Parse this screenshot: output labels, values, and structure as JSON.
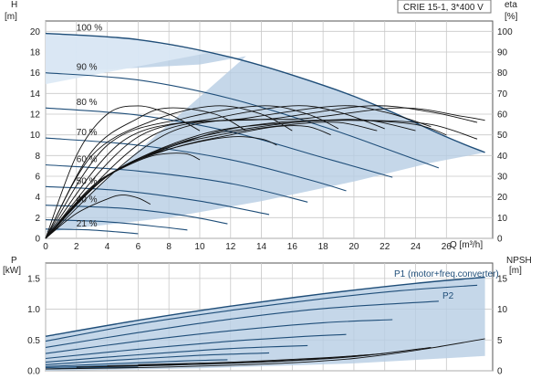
{
  "colors": {
    "curve": "#1f4e79",
    "area_dark": "#b7cde4",
    "area_light": "#dce9f5",
    "grid": "#c8c8c8",
    "efficiency": "#111111",
    "axis": "#555555"
  },
  "chart_data": [
    {
      "type": "line",
      "title": "CRIE 15-1, 3*400 V",
      "xlabel": "Q [m³/h]",
      "ylabel_left": "H",
      "ylabel_left_unit": "[m]",
      "ylabel_right": "eta",
      "ylabel_right_unit": "[%]",
      "xlim": [
        0,
        29
      ],
      "ylim_left": [
        0,
        21
      ],
      "ylim_right": [
        0,
        105
      ],
      "x_ticks": [
        0,
        2,
        4,
        6,
        8,
        10,
        12,
        14,
        16,
        18,
        20,
        22,
        24,
        26
      ],
      "y_ticks_left": [
        0,
        2,
        4,
        6,
        8,
        10,
        12,
        14,
        16,
        18,
        20
      ],
      "y_ticks_right": [
        0,
        10,
        20,
        30,
        40,
        50,
        60,
        70,
        80,
        90,
        100
      ],
      "grid": true,
      "head_curves": [
        {
          "label": "100 %",
          "values": [
            [
              0,
              19.8
            ],
            [
              6,
              19.2
            ],
            [
              12,
              17.5
            ],
            [
              18,
              14.8
            ],
            [
              22,
              12.5
            ],
            [
              26,
              9.8
            ],
            [
              28.5,
              8.3
            ]
          ]
        },
        {
          "label": "90 %",
          "values": [
            [
              0,
              16.0
            ],
            [
              6,
              15.3
            ],
            [
              12,
              13.5
            ],
            [
              18,
              10.8
            ],
            [
              22,
              8.7
            ],
            [
              25.5,
              6.8
            ]
          ]
        },
        {
          "label": "80 %",
          "values": [
            [
              0,
              12.6
            ],
            [
              6,
              11.9
            ],
            [
              12,
              10.3
            ],
            [
              18,
              7.8
            ],
            [
              22.5,
              5.9
            ]
          ]
        },
        {
          "label": "70 %",
          "values": [
            [
              0,
              9.7
            ],
            [
              6,
              9.0
            ],
            [
              12,
              7.6
            ],
            [
              17,
              5.7
            ],
            [
              19.5,
              4.6
            ]
          ]
        },
        {
          "label": "60 %",
          "values": [
            [
              0,
              7.1
            ],
            [
              6,
              6.5
            ],
            [
              12,
              5.3
            ],
            [
              17,
              3.5
            ]
          ]
        },
        {
          "label": "50 %",
          "values": [
            [
              0,
              5.0
            ],
            [
              5,
              4.6
            ],
            [
              10,
              3.6
            ],
            [
              14.5,
              2.3
            ]
          ]
        },
        {
          "label": "40 %",
          "values": [
            [
              0,
              3.2
            ],
            [
              5,
              2.9
            ],
            [
              9,
              2.2
            ],
            [
              11.8,
              1.4
            ]
          ]
        },
        {
          "label": "",
          "values": [
            [
              0,
              1.8
            ],
            [
              4,
              1.6
            ],
            [
              7.5,
              1.1
            ],
            [
              9.2,
              0.8
            ]
          ]
        },
        {
          "label": "21 %",
          "values": [
            [
              0,
              0.9
            ],
            [
              3,
              0.8
            ],
            [
              6,
              0.45
            ]
          ]
        }
      ],
      "efficiency_curves": [
        {
          "values": [
            [
              0,
              0
            ],
            [
              2,
              12
            ],
            [
              4,
              19
            ],
            [
              5,
              21
            ],
            [
              6,
              19.5
            ],
            [
              6.8,
              16.5
            ]
          ]
        },
        {
          "values": [
            [
              0,
              0
            ],
            [
              3,
              25
            ],
            [
              5,
              34
            ],
            [
              7,
              40
            ],
            [
              9,
              41
            ],
            [
              10,
              38
            ]
          ]
        },
        {
          "values": [
            [
              0,
              0
            ],
            [
              3,
              25
            ],
            [
              6,
              38
            ],
            [
              9,
              45
            ],
            [
              12,
              49
            ],
            [
              14,
              48
            ],
            [
              15,
              45
            ]
          ]
        },
        {
          "values": [
            [
              0,
              0
            ],
            [
              4,
              30
            ],
            [
              8,
              43
            ],
            [
              12,
              50
            ],
            [
              15,
              54
            ],
            [
              17,
              54
            ],
            [
              18.5,
              50
            ]
          ]
        },
        {
          "values": [
            [
              0,
              0
            ],
            [
              4,
              30
            ],
            [
              8,
              44
            ],
            [
              12,
              51
            ],
            [
              16,
              55
            ],
            [
              19,
              56
            ],
            [
              21.5,
              52
            ]
          ]
        },
        {
          "values": [
            [
              0,
              0
            ],
            [
              4,
              30
            ],
            [
              9,
              47
            ],
            [
              14,
              54
            ],
            [
              18,
              57
            ],
            [
              21,
              57
            ],
            [
              24,
              52
            ]
          ]
        },
        {
          "values": [
            [
              0,
              0
            ],
            [
              4,
              30
            ],
            [
              10,
              49
            ],
            [
              15,
              56
            ],
            [
              20,
              57
            ],
            [
              24,
              55
            ],
            [
              26,
              50
            ]
          ]
        },
        {
          "values": [
            [
              0,
              0
            ],
            [
              4,
              30
            ],
            [
              10,
              50
            ],
            [
              16,
              56
            ],
            [
              21,
              57
            ],
            [
              25,
              55
            ],
            [
              28,
              48
            ]
          ]
        },
        {
          "values": [
            [
              0,
              0
            ],
            [
              2,
              40
            ],
            [
              4,
              60
            ],
            [
              6,
              64
            ],
            [
              8,
              60
            ],
            [
              10,
              52
            ]
          ]
        },
        {
          "values": [
            [
              0,
              0
            ],
            [
              3,
              42
            ],
            [
              6,
              58
            ],
            [
              8,
              63
            ],
            [
              11,
              60
            ],
            [
              13,
              52
            ]
          ]
        },
        {
          "values": [
            [
              0,
              0
            ],
            [
              3,
              40
            ],
            [
              7,
              57
            ],
            [
              11,
              64
            ],
            [
              14,
              60
            ],
            [
              16,
              52
            ]
          ]
        },
        {
          "values": [
            [
              0,
              0
            ],
            [
              4,
              45
            ],
            [
              9,
              58
            ],
            [
              14,
              64
            ],
            [
              17,
              60
            ],
            [
              19,
              53
            ]
          ]
        },
        {
          "values": [
            [
              0,
              0
            ],
            [
              5,
              47
            ],
            [
              11,
              58
            ],
            [
              16,
              64
            ],
            [
              19,
              61
            ],
            [
              22,
              53
            ]
          ]
        },
        {
          "values": [
            [
              0,
              0
            ],
            [
              6,
              49
            ],
            [
              13,
              58
            ],
            [
              19,
              64
            ],
            [
              22,
              61
            ],
            [
              25,
              54
            ]
          ]
        },
        {
          "values": [
            [
              0,
              0
            ],
            [
              7,
              50
            ],
            [
              15,
              58
            ],
            [
              21,
              64
            ],
            [
              25,
              61
            ],
            [
              28,
              56
            ]
          ]
        },
        {
          "values": [
            [
              0,
              0
            ],
            [
              8,
              51
            ],
            [
              17,
              58
            ],
            [
              23,
              63
            ],
            [
              27,
              59
            ],
            [
              28.5,
              57
            ]
          ]
        }
      ],
      "operating_area": [
        [
          0,
          0.6
        ],
        [
          2,
          1.0
        ],
        [
          8,
          2.0
        ],
        [
          14,
          3.6
        ],
        [
          20,
          5.5
        ],
        [
          25,
          7.3
        ],
        [
          28.5,
          8.3
        ],
        [
          26,
          9.8
        ],
        [
          22,
          12.5
        ],
        [
          18,
          14.8
        ],
        [
          12,
          17.5
        ],
        [
          6,
          19.2
        ],
        [
          0,
          19.8
        ],
        [
          0,
          16.0
        ],
        [
          10,
          16.8
        ],
        [
          13,
          17.6
        ]
      ],
      "operating_area_light": [
        [
          0,
          19.8
        ],
        [
          6,
          19.2
        ],
        [
          10.5,
          17.9
        ],
        [
          0,
          14.9
        ]
      ]
    },
    {
      "type": "line",
      "ylabel_left": "P",
      "ylabel_left_unit": "[kW]",
      "ylabel_right": "NPSH",
      "ylabel_right_unit": "[m]",
      "xlim": [
        0,
        29
      ],
      "ylim_left": [
        0,
        1.75
      ],
      "ylim_right": [
        0,
        17.5
      ],
      "y_ticks_left": [
        0.0,
        0.5,
        1.0,
        1.5
      ],
      "y_ticks_right": [
        0,
        5,
        10,
        15
      ],
      "grid": true,
      "series_labels": [
        "P1 (motor+freq.converter)",
        "P2"
      ],
      "power_curves": [
        {
          "values": [
            [
              0,
              0.56
            ],
            [
              6,
              0.82
            ],
            [
              12,
              1.05
            ],
            [
              18,
              1.25
            ],
            [
              24,
              1.42
            ],
            [
              28.5,
              1.52
            ]
          ]
        },
        {
          "values": [
            [
              0,
              0.48
            ],
            [
              6,
              0.76
            ],
            [
              12,
              0.98
            ],
            [
              18,
              1.17
            ],
            [
              23,
              1.3
            ],
            [
              28,
              1.39
            ]
          ]
        },
        {
          "values": [
            [
              0,
              0.38
            ],
            [
              6,
              0.62
            ],
            [
              12,
              0.84
            ],
            [
              18,
              1.01
            ],
            [
              25.5,
              1.13
            ]
          ]
        },
        {
          "values": [
            [
              0,
              0.28
            ],
            [
              6,
              0.48
            ],
            [
              12,
              0.65
            ],
            [
              18,
              0.78
            ],
            [
              22.5,
              0.83
            ]
          ]
        },
        {
          "values": [
            [
              0,
              0.2
            ],
            [
              6,
              0.35
            ],
            [
              12,
              0.48
            ],
            [
              17,
              0.56
            ],
            [
              19.5,
              0.59
            ]
          ]
        },
        {
          "values": [
            [
              0,
              0.14
            ],
            [
              6,
              0.26
            ],
            [
              12,
              0.36
            ],
            [
              17,
              0.41
            ]
          ]
        },
        {
          "values": [
            [
              0,
              0.1
            ],
            [
              5,
              0.18
            ],
            [
              10,
              0.25
            ],
            [
              14.5,
              0.29
            ]
          ]
        },
        {
          "values": [
            [
              0,
              0.07
            ],
            [
              5,
              0.12
            ],
            [
              9,
              0.16
            ],
            [
              11.8,
              0.18
            ]
          ]
        },
        {
          "values": [
            [
              0,
              0.05
            ],
            [
              4,
              0.08
            ],
            [
              7.5,
              0.1
            ],
            [
              9.2,
              0.11
            ]
          ]
        },
        {
          "values": [
            [
              0,
              0.03
            ],
            [
              3,
              0.05
            ],
            [
              6,
              0.06
            ]
          ]
        }
      ],
      "npsh_curves": [
        {
          "values": [
            [
              0,
              0.3
            ],
            [
              6,
              0.5
            ],
            [
              12,
              0.9
            ],
            [
              16,
              1.3
            ],
            [
              20,
              2.0
            ],
            [
              24,
              3.3
            ],
            [
              28.5,
              5.2
            ]
          ]
        },
        {
          "values": [
            [
              2,
              0.6
            ],
            [
              8,
              0.9
            ],
            [
              14,
              1.4
            ],
            [
              20,
              2.3
            ],
            [
              25,
              3.8
            ]
          ]
        },
        {
          "values": [
            [
              4,
              0.8
            ],
            [
              10,
              1.1
            ],
            [
              16,
              1.7
            ],
            [
              22,
              2.8
            ]
          ]
        },
        {
          "values": [
            [
              6,
              1.0
            ],
            [
              12,
              1.4
            ],
            [
              18,
              2.1
            ],
            [
              21,
              2.6
            ]
          ]
        }
      ],
      "operating_area": [
        [
          0,
          0.0
        ],
        [
          10,
          0.04
        ],
        [
          20,
          0.12
        ],
        [
          28.5,
          0.24
        ],
        [
          28.5,
          1.52
        ],
        [
          24,
          1.42
        ],
        [
          18,
          1.25
        ],
        [
          12,
          1.05
        ],
        [
          6,
          0.82
        ],
        [
          0,
          0.56
        ]
      ]
    }
  ]
}
